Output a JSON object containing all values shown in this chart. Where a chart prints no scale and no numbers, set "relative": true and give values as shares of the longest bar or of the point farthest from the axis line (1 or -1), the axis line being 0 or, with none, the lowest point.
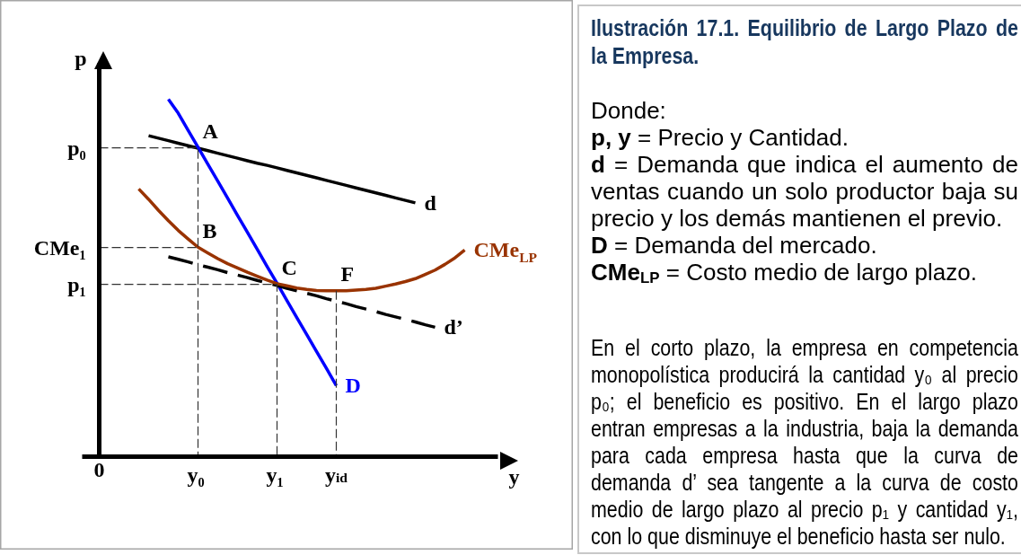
{
  "chart_data": {
    "type": "line",
    "title": "Ilustración 17.1. Equilibrio de Largo Plazo de la Empresa.",
    "xlabel": "y",
    "ylabel": "p",
    "relative": true,
    "categories": [
      "0",
      null,
      null,
      null,
      null,
      null,
      null,
      null,
      null,
      null,
      "y₀",
      null,
      null,
      null,
      null,
      null,
      null,
      null,
      "y₁",
      null,
      null,
      null,
      null,
      null,
      "y$_{id}$",
      null,
      null,
      null,
      null,
      null,
      null,
      null,
      null,
      null,
      null,
      null,
      null,
      null
    ],
    "series": [
      {
        "name": "d",
        "color": "#000000",
        "values": [
          null,
          null,
          null,
          null,
          null,
          0.898,
          0.891,
          0.884,
          0.877,
          0.87,
          0.863,
          0.856,
          0.849,
          0.842,
          0.835,
          0.828,
          0.821,
          0.815,
          0.808,
          0.801,
          0.794,
          0.787,
          0.78,
          0.773,
          0.766,
          0.759,
          0.752,
          0.745,
          0.738,
          0.731,
          0.724,
          0.717,
          0.71,
          null,
          null,
          null,
          null,
          null
        ]
      },
      {
        "name": "D",
        "color": "#0000ff",
        "values": [
          null,
          null,
          null,
          null,
          null,
          null,
          null,
          1.0,
          0.961,
          0.913,
          0.866,
          0.818,
          0.771,
          0.723,
          0.675,
          0.628,
          0.58,
          0.532,
          0.485,
          0.437,
          0.389,
          0.342,
          0.294,
          0.247,
          0.199,
          null,
          null,
          null,
          null,
          null,
          null,
          null,
          null,
          null,
          null,
          null,
          null,
          null
        ]
      },
      {
        "name": "d’",
        "color": "#000000",
        "line_style": "dashed",
        "values": [
          null,
          null,
          null,
          null,
          null,
          null,
          null,
          0.559,
          0.552,
          0.545,
          0.537,
          0.53,
          0.523,
          0.515,
          0.508,
          0.501,
          0.493,
          0.486,
          0.479,
          0.471,
          0.464,
          0.457,
          0.45,
          0.442,
          0.435,
          0.428,
          0.42,
          0.413,
          0.406,
          0.398,
          0.391,
          0.384,
          0.377,
          0.369,
          0.362,
          null,
          null,
          null
        ]
      },
      {
        "name": "CMe$_{LP}$",
        "color": "#993300",
        "values": [
          null,
          null,
          null,
          null,
          0.749,
          0.72,
          0.689,
          0.66,
          0.633,
          0.609,
          0.586,
          0.57,
          0.554,
          0.54,
          0.528,
          0.516,
          0.505,
          0.494,
          0.484,
          0.478,
          0.472,
          0.468,
          0.465,
          0.464,
          0.464,
          0.464,
          0.466,
          0.468,
          0.471,
          0.477,
          0.483,
          0.49,
          0.498,
          0.51,
          0.522,
          0.538,
          0.556,
          0.578
        ]
      },
      {
        "color": "#333333",
        "line_style": "dashed",
        "x": [
          "0",
          "y₀",
          "y₀"
        ],
        "values": [
          0.864,
          0.864,
          0
        ]
      },
      {
        "color": "#333333",
        "line_style": "dashed",
        "x": [
          "0",
          "y₀"
        ],
        "values": [
          0.585,
          0.585
        ]
      },
      {
        "color": "#333333",
        "line_style": "dashed",
        "x": [
          "0",
          "y₁",
          "y₁"
        ],
        "values": [
          0.482,
          0.482,
          0
        ]
      },
      {
        "color": "#333333",
        "line_style": "dashed",
        "x": [
          "y$_{id}$",
          "y$_{id}$"
        ],
        "values": [
          0.464,
          0
        ]
      }
    ],
    "annotations": [
      {
        "text": "A",
        "x": "y₀",
        "y": 0.864
      },
      {
        "text": "B",
        "x": "y₀",
        "y": 0.585
      },
      {
        "text": "C",
        "x": "y₁",
        "y": 0.482
      },
      {
        "text": "F",
        "x": "y$_{id}$",
        "y": 0.464
      },
      {
        "text": "p₀",
        "x": "0",
        "y": 0.864
      },
      {
        "text": "CMe₁",
        "x": "0",
        "y": 0.585
      },
      {
        "text": "p₁",
        "x": "0",
        "y": 0.482
      },
      "Donde:",
      "p, y = Precio y Cantidad.",
      "d = Demanda que indica el aumento de ventas cuando un solo productor baja su precio y los demás mantienen el previo.",
      "D = Demanda del mercado.",
      "CMe$_{LP}$ = Costo medio de largo plazo.",
      "En el corto plazo, la empresa en competencia monopolística producirá la cantidad y₀ al precio p₀; el beneficio es positivo. En el largo plazo entran empresas a la industria, baja la demanda para cada empresa hasta que la curva de demanda d’ sea tangente a la curva de costo medio de largo plazo al precio p₁ y cantidad y₁, con lo que disminuye el beneficio hasta ser nulo."
    ]
  }
}
